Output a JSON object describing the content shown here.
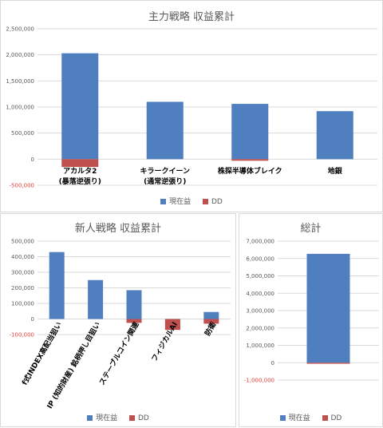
{
  "colors": {
    "現在益": "#4f7fbf",
    "DD": "#c0504d",
    "grid": "#d9d9d9",
    "negative_tick": "#e8413b"
  },
  "chart_data": [
    {
      "id": "main",
      "type": "bar",
      "title": "主力戦略 収益累計",
      "categories": [
        [
          "アカルタ2",
          "(暴落逆張り)"
        ],
        [
          "キラークイーン",
          "(通常逆張り)"
        ],
        [
          "株探半導体ブレイク"
        ],
        [
          "地銀"
        ]
      ],
      "series": [
        {
          "name": "現在益",
          "values": [
            2030000,
            1100000,
            1060000,
            920000
          ]
        },
        {
          "name": "DD",
          "values": [
            -150000,
            0,
            -30000,
            0
          ]
        }
      ],
      "yticks": [
        "2,500,000",
        "2,000,000",
        "1,500,000",
        "1,000,000",
        "500,000",
        "0",
        "-500,000"
      ],
      "ylim": [
        -500000,
        2500000
      ],
      "grid": true,
      "legend": "bottom"
    },
    {
      "id": "new",
      "type": "bar",
      "title": "新人戦略 収益累計",
      "categories": [
        "f式INDEX高配当狙い",
        "IP (知的財産) 銘柄押し目狙い",
        "ステーブルコイン関連",
        "フィジカルAI",
        "防衛"
      ],
      "series": [
        {
          "name": "現在益",
          "values": [
            430000,
            250000,
            185000,
            0,
            45000
          ]
        },
        {
          "name": "DD",
          "values": [
            0,
            0,
            -25000,
            -70000,
            -30000
          ]
        }
      ],
      "yticks": [
        "500,000",
        "400,000",
        "300,000",
        "200,000",
        "100,000",
        "0",
        "-100,000"
      ],
      "ylim": [
        -100000,
        500000
      ],
      "grid": true,
      "legend": "bottom"
    },
    {
      "id": "total",
      "type": "bar",
      "title": "総計",
      "categories": [
        ""
      ],
      "series": [
        {
          "name": "現在益",
          "values": [
            6270000
          ]
        },
        {
          "name": "DD",
          "values": [
            -60000
          ]
        }
      ],
      "yticks": [
        "7,000,000",
        "6,000,000",
        "5,000,000",
        "4,000,000",
        "3,000,000",
        "2,000,000",
        "1,000,000",
        "0",
        "-1,000,000"
      ],
      "ylim": [
        -1000000,
        7000000
      ],
      "grid": true,
      "legend": "bottom"
    }
  ]
}
